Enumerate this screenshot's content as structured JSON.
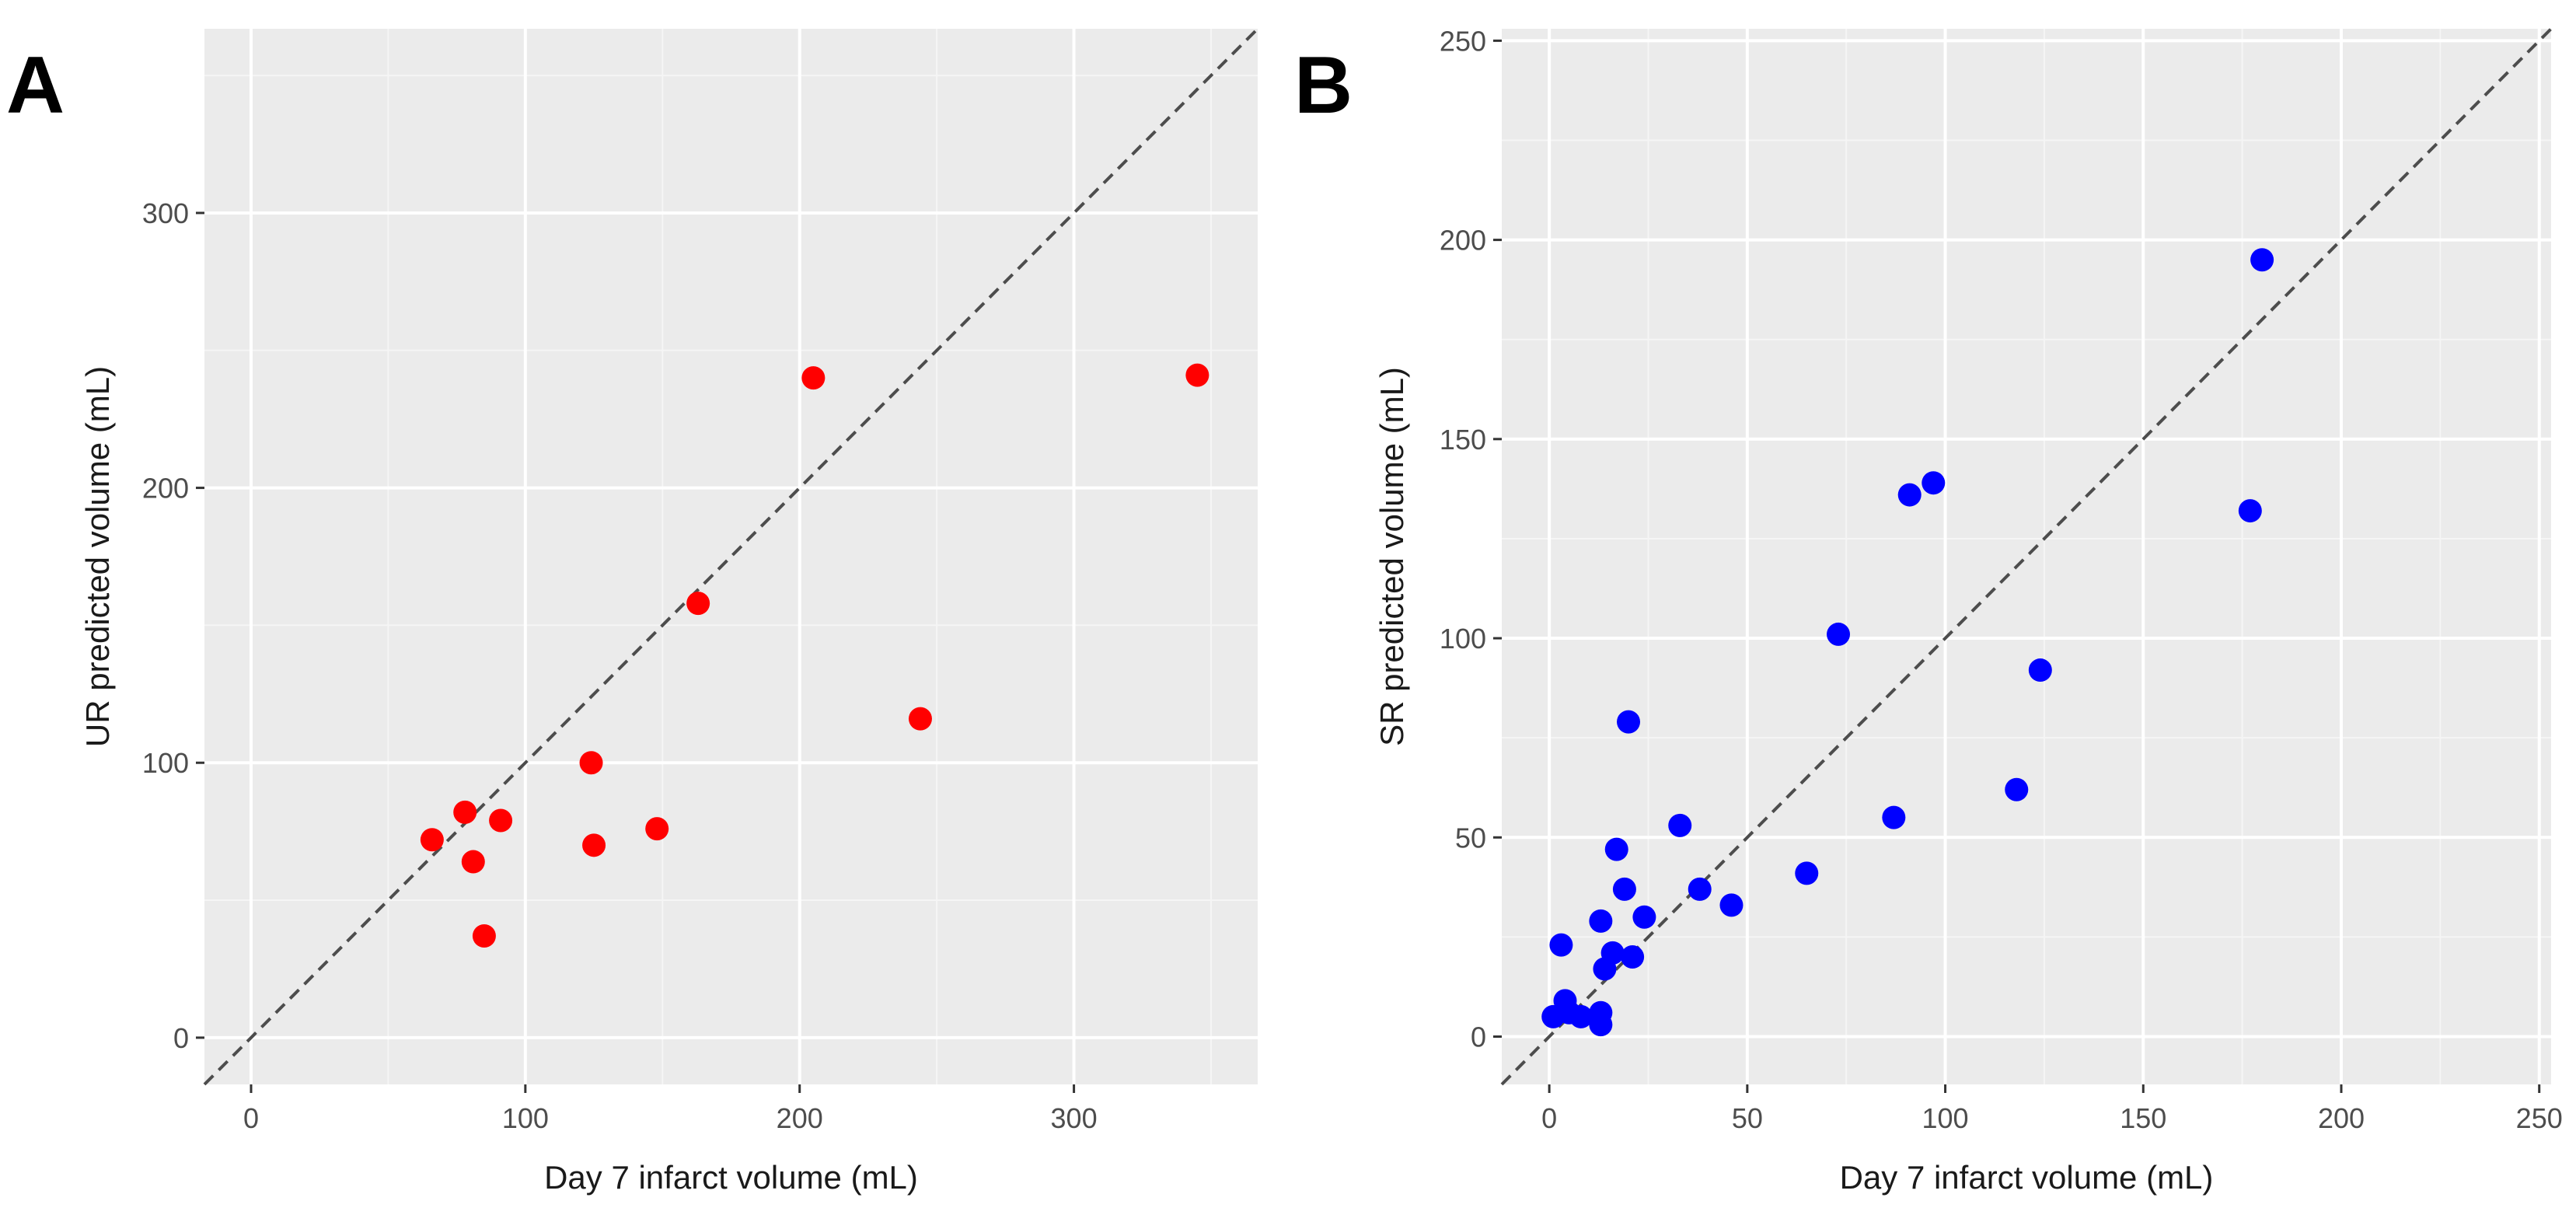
{
  "chart_data": [
    {
      "type": "scatter",
      "panel_label": "A",
      "xlabel": "Day 7 infarct volume (mL)",
      "ylabel": "UR predicted volume (mL)",
      "xlim": [
        -17,
        367
      ],
      "ylim": [
        -17,
        367
      ],
      "xticks": [
        0,
        100,
        200,
        300
      ],
      "yticks": [
        0,
        100,
        200,
        300
      ],
      "reference_line": "y = x (dashed)",
      "point_color": "#ff0000",
      "series": [
        {
          "name": "UR",
          "points": [
            {
              "x": 66,
              "y": 72
            },
            {
              "x": 78,
              "y": 82
            },
            {
              "x": 81,
              "y": 64
            },
            {
              "x": 85,
              "y": 37
            },
            {
              "x": 91,
              "y": 79
            },
            {
              "x": 124,
              "y": 100
            },
            {
              "x": 125,
              "y": 70
            },
            {
              "x": 148,
              "y": 76
            },
            {
              "x": 163,
              "y": 158
            },
            {
              "x": 205,
              "y": 240
            },
            {
              "x": 244,
              "y": 116
            },
            {
              "x": 345,
              "y": 241
            }
          ]
        }
      ]
    },
    {
      "type": "scatter",
      "panel_label": "B",
      "xlabel": "Day 7 infarct volume (mL)",
      "ylabel": "SR predicted volume (mL)",
      "xlim": [
        -12,
        253
      ],
      "ylim": [
        -12,
        253
      ],
      "xticks": [
        0,
        50,
        100,
        150,
        200,
        250
      ],
      "yticks": [
        0,
        50,
        100,
        150,
        200,
        250
      ],
      "reference_line": "y = x (dashed)",
      "point_color": "#0000ff",
      "series": [
        {
          "name": "SR",
          "points": [
            {
              "x": 1,
              "y": 5
            },
            {
              "x": 3,
              "y": 23
            },
            {
              "x": 4,
              "y": 9
            },
            {
              "x": 5,
              "y": 6
            },
            {
              "x": 8,
              "y": 5
            },
            {
              "x": 13,
              "y": 3
            },
            {
              "x": 13,
              "y": 6
            },
            {
              "x": 13,
              "y": 29
            },
            {
              "x": 14,
              "y": 17
            },
            {
              "x": 16,
              "y": 21
            },
            {
              "x": 17,
              "y": 47
            },
            {
              "x": 19,
              "y": 37
            },
            {
              "x": 20,
              "y": 79
            },
            {
              "x": 21,
              "y": 20
            },
            {
              "x": 24,
              "y": 30
            },
            {
              "x": 33,
              "y": 53
            },
            {
              "x": 38,
              "y": 37
            },
            {
              "x": 46,
              "y": 33
            },
            {
              "x": 65,
              "y": 41
            },
            {
              "x": 73,
              "y": 101
            },
            {
              "x": 87,
              "y": 55
            },
            {
              "x": 91,
              "y": 136
            },
            {
              "x": 97,
              "y": 139
            },
            {
              "x": 118,
              "y": 62
            },
            {
              "x": 124,
              "y": 92
            },
            {
              "x": 177,
              "y": 132
            },
            {
              "x": 180,
              "y": 195
            }
          ]
        }
      ]
    }
  ]
}
